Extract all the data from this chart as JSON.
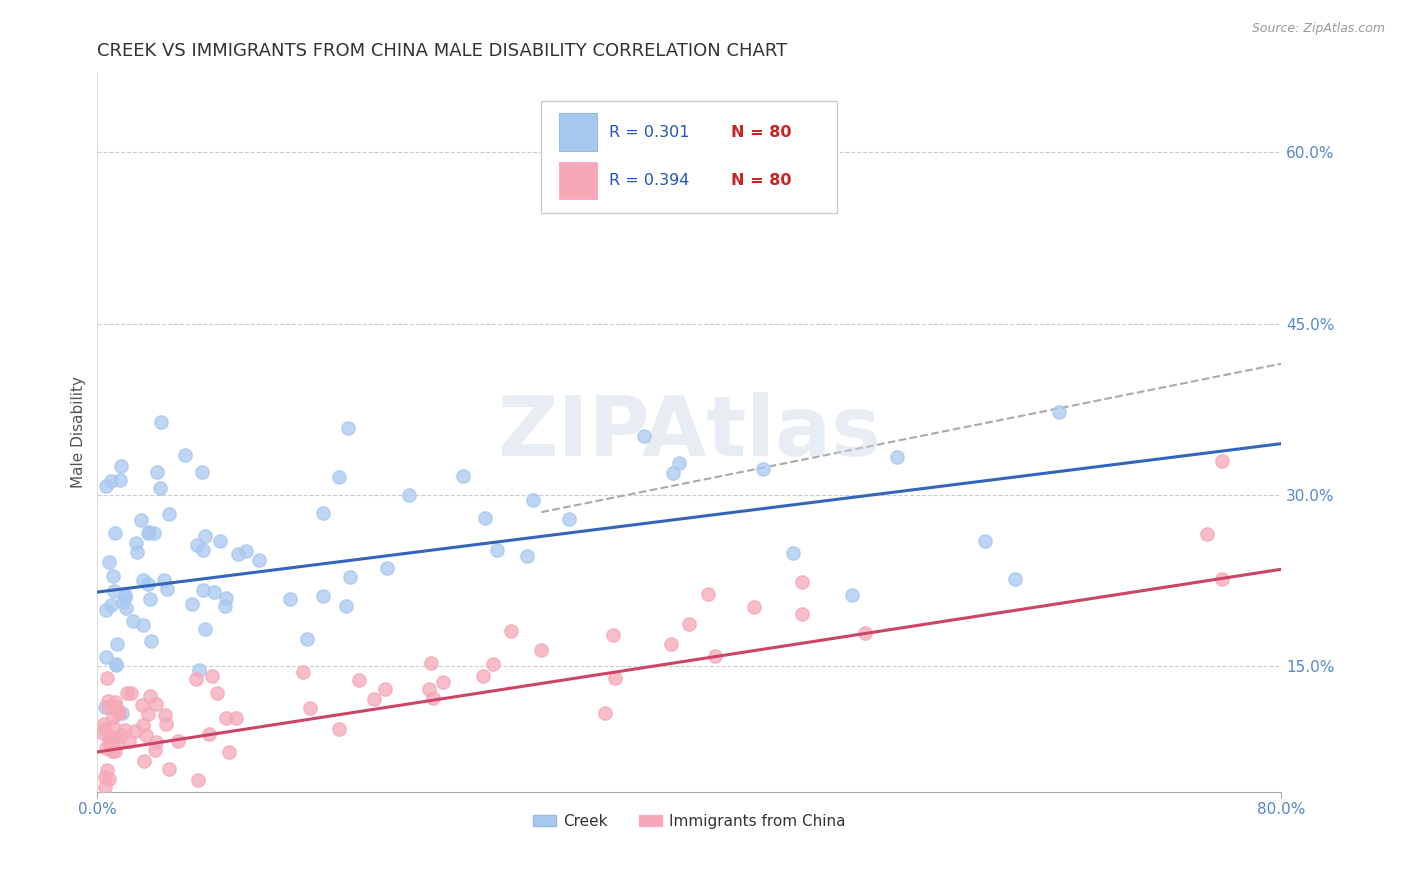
{
  "title": "CREEK VS IMMIGRANTS FROM CHINA MALE DISABILITY CORRELATION CHART",
  "source": "Source: ZipAtlas.com",
  "ylabel": "Male Disability",
  "xlim": [
    0.0,
    0.8
  ],
  "ylim": [
    0.04,
    0.67
  ],
  "y_ticks_right": [
    0.15,
    0.3,
    0.45,
    0.6
  ],
  "y_tick_labels_right": [
    "15.0%",
    "30.0%",
    "45.0%",
    "60.0%"
  ],
  "legend_R_blue": "R = 0.301",
  "legend_N_blue": "N = 80",
  "legend_R_pink": "R = 0.394",
  "legend_N_pink": "N = 80",
  "legend_label_blue": "Creek",
  "legend_label_pink": "Immigrants from China",
  "blue_color": "#a8c8f0",
  "pink_color": "#f5a8b8",
  "blue_line_color": "#3366bb",
  "pink_line_color": "#cc4466",
  "gray_line_color": "#aaaaaa",
  "watermark": "ZIPAtlas",
  "blue_trendline_x": [
    0.0,
    0.8
  ],
  "blue_trendline_y": [
    0.215,
    0.345
  ],
  "pink_trendline_x": [
    0.0,
    0.8
  ],
  "pink_trendline_y": [
    0.075,
    0.235
  ],
  "gray_trendline_x": [
    0.3,
    0.8
  ],
  "gray_trendline_y": [
    0.285,
    0.415
  ],
  "title_fontsize": 13,
  "axis_label_fontsize": 11,
  "tick_fontsize": 11,
  "background_color": "#ffffff"
}
